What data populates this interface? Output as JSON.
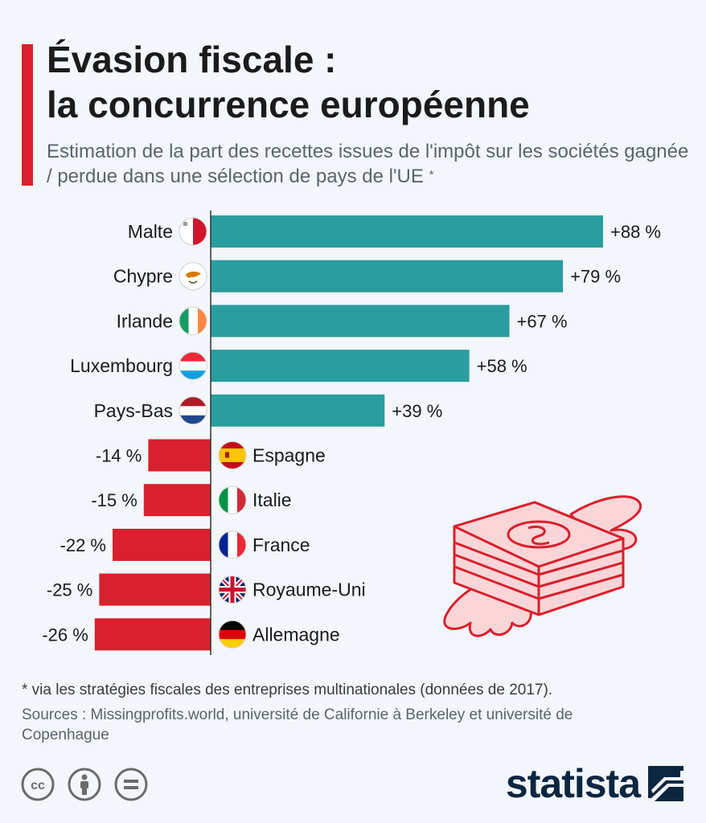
{
  "header": {
    "title_line1": "Évasion fiscale :",
    "title_line2": "la concurrence européenne",
    "subtitle": "Estimation de la part des recettes issues de l'impôt sur les sociétés gagnée / perdue dans une sélection de pays de l'UE",
    "subtitle_mark": "*"
  },
  "colors": {
    "positive": "#2a9d9f",
    "negative": "#d8202e",
    "accent": "#d8202e",
    "brand": "#0d2640"
  },
  "chart_data": {
    "type": "bar",
    "orientation": "horizontal",
    "unit": "%",
    "categories": [
      "Malte",
      "Chypre",
      "Irlande",
      "Luxembourg",
      "Pays-Bas",
      "Espagne",
      "Italie",
      "France",
      "Royaume-Uni",
      "Allemagne"
    ],
    "values": [
      88,
      79,
      67,
      58,
      39,
      -14,
      -15,
      -22,
      -25,
      -26
    ],
    "value_labels": [
      "+88 %",
      "+79 %",
      "+67 %",
      "+58 %",
      "+39 %",
      "-14 %",
      "-15 %",
      "-22 %",
      "-25 %",
      "-26 %"
    ],
    "flag_icons": [
      "malta-flag-icon",
      "cyprus-flag-icon",
      "ireland-flag-icon",
      "luxembourg-flag-icon",
      "netherlands-flag-icon",
      "spain-flag-icon",
      "italy-flag-icon",
      "france-flag-icon",
      "uk-flag-icon",
      "germany-flag-icon"
    ],
    "xlim": [
      -26,
      88
    ],
    "grid": false,
    "legend": "none"
  },
  "decoration": {
    "illustration_icon": "flying-money-icon"
  },
  "footer": {
    "footnote": "* via les stratégies fiscales des entreprises multinationales (données de 2017).",
    "sources": "Sources : Missingprofits.world, université de Californie à Berkeley et université de Copenhague",
    "license_icons": [
      "cc-icon",
      "by-icon",
      "nd-icon"
    ],
    "brand": "statista"
  }
}
